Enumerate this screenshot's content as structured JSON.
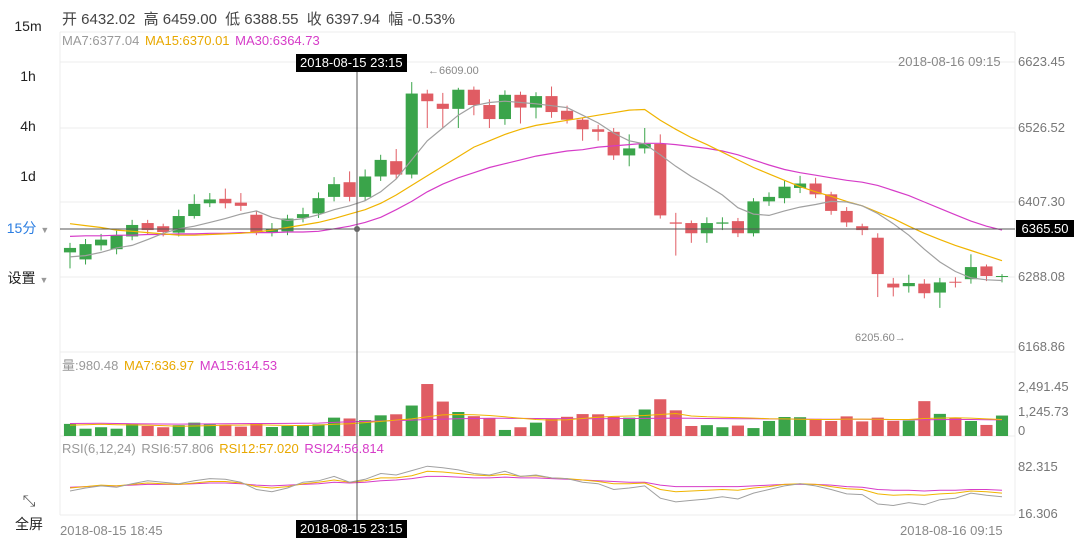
{
  "sidebar": {
    "timeframes": [
      {
        "label": "15m",
        "active": false,
        "caret": false
      },
      {
        "label": "1h",
        "active": false,
        "caret": false
      },
      {
        "label": "4h",
        "active": false,
        "caret": false
      },
      {
        "label": "1d",
        "active": false,
        "caret": false
      },
      {
        "label": "15分",
        "active": true,
        "caret": true
      },
      {
        "label": "设置",
        "active": false,
        "caret": true
      }
    ],
    "fullscreen_label": "全屏"
  },
  "header": {
    "open": "开 6432.02",
    "high": "高 6459.00",
    "low": "低 6388.55",
    "close": "收 6397.94",
    "change": "幅 -0.53%"
  },
  "ma_legend": {
    "ma7": "MA7:6377.04",
    "ma15": "MA15:6370.01",
    "ma30": "MA30:6364.73"
  },
  "vol_legend": {
    "vol": "量:980.48",
    "ma7": "MA7:636.97",
    "ma15": "MA15:614.53"
  },
  "rsi_legend": {
    "title": "RSI(6,12,24)",
    "rsi6": "RSI6:57.806",
    "rsi12": "RSI12:57.020",
    "rsi24": "RSI24:56.814"
  },
  "axis_labels": {
    "price": [
      "6623.45",
      "6526.52",
      "6407.30",
      "6288.08",
      "6168.86"
    ],
    "volume": [
      "2,491.45",
      "1,245.73",
      "0"
    ],
    "rsi": [
      "82.315",
      "16.306"
    ],
    "current_price": "6365.50"
  },
  "annotations": {
    "high_marker": "←6609.00",
    "low_marker": "6205.60→",
    "top_right_time": "2018-08-16 09:15",
    "crosshair_time": "2018-08-15 23:15",
    "bottom_left_date": "2018-08-15 18:45",
    "bottom_time": "2018-08-15 23:15",
    "bottom_right_date": "2018-08-16 09:15"
  },
  "colors": {
    "up": "#3aa44a",
    "down": "#e05c63",
    "ma7": "#a0a0a0",
    "ma15": "#f0b400",
    "ma30": "#d63cc8",
    "accent": "#2a7de1",
    "grid": "#ececec",
    "crosshair": "#555555"
  },
  "chart_data": {
    "type": "candlestick",
    "ylim": [
      6168.86,
      6623.45
    ],
    "candles": [
      [
        6325,
        6332,
        6340,
        6300
      ],
      [
        6314,
        6338,
        6346,
        6306
      ],
      [
        6336,
        6345,
        6354,
        6328
      ],
      [
        6330,
        6352,
        6359,
        6322
      ],
      [
        6350,
        6368,
        6376,
        6344
      ],
      [
        6371,
        6360,
        6376,
        6353
      ],
      [
        6366,
        6357,
        6370,
        6350
      ],
      [
        6356,
        6382,
        6392,
        6350
      ],
      [
        6382,
        6401,
        6416,
        6378
      ],
      [
        6402,
        6408,
        6418,
        6396
      ],
      [
        6409,
        6402,
        6425,
        6394
      ],
      [
        6403,
        6398,
        6418,
        6390
      ],
      [
        6384,
        6357,
        6390,
        6352
      ],
      [
        6356,
        6361,
        6371,
        6350
      ],
      [
        6358,
        6378,
        6384,
        6352
      ],
      [
        6379,
        6385,
        6395,
        6372
      ],
      [
        6386,
        6410,
        6419,
        6379
      ],
      [
        6412,
        6432,
        6443,
        6405
      ],
      [
        6435,
        6412,
        6452,
        6405
      ],
      [
        6412,
        6444,
        6455,
        6406
      ],
      [
        6444,
        6470,
        6478,
        6437
      ],
      [
        6468,
        6447,
        6487,
        6440
      ],
      [
        6447,
        6574,
        6592,
        6441
      ],
      [
        6574,
        6562,
        6580,
        6520
      ],
      [
        6558,
        6550,
        6575,
        6520
      ],
      [
        6550,
        6580,
        6583,
        6520
      ],
      [
        6580,
        6556,
        6585,
        6540
      ],
      [
        6556,
        6534,
        6565,
        6520
      ],
      [
        6534,
        6572,
        6579,
        6525
      ],
      [
        6572,
        6552,
        6577,
        6527
      ],
      [
        6552,
        6570,
        6576,
        6535
      ],
      [
        6570,
        6545,
        6585,
        6536
      ],
      [
        6547,
        6533,
        6555,
        6527
      ],
      [
        6533,
        6518,
        6536,
        6500
      ],
      [
        6518,
        6514,
        6525,
        6500
      ],
      [
        6514,
        6477,
        6520,
        6470
      ],
      [
        6477,
        6488,
        6510,
        6460
      ],
      [
        6488,
        6495,
        6520,
        6480
      ],
      [
        6495,
        6383,
        6510,
        6378
      ],
      [
        6372,
        6370,
        6387,
        6320
      ],
      [
        6371,
        6355,
        6375,
        6340
      ],
      [
        6355,
        6371,
        6380,
        6340
      ],
      [
        6370,
        6372,
        6380,
        6360
      ],
      [
        6374,
        6355,
        6379,
        6349
      ],
      [
        6355,
        6405,
        6410,
        6350
      ],
      [
        6405,
        6412,
        6419,
        6398
      ],
      [
        6410,
        6428,
        6438,
        6402
      ],
      [
        6426,
        6433,
        6445,
        6418
      ],
      [
        6433,
        6416,
        6442,
        6410
      ],
      [
        6416,
        6390,
        6420,
        6384
      ],
      [
        6390,
        6372,
        6396,
        6365
      ],
      [
        6366,
        6360,
        6370,
        6352
      ],
      [
        6348,
        6291,
        6355,
        6255
      ],
      [
        6276,
        6270,
        6285,
        6256
      ],
      [
        6272,
        6277,
        6290,
        6262
      ],
      [
        6276,
        6261,
        6283,
        6253
      ],
      [
        6262,
        6278,
        6285,
        6238
      ],
      [
        6279,
        6278,
        6286,
        6270
      ],
      [
        6283,
        6302,
        6322,
        6276
      ],
      [
        6303,
        6288,
        6306,
        6280
      ],
      [
        6288,
        6288,
        6291,
        6278
      ]
    ],
    "ma7": [
      6318,
      6320,
      6325,
      6332,
      6336,
      6345,
      6355,
      6362,
      6366,
      6372,
      6378,
      6385,
      6390,
      6380,
      6375,
      6378,
      6384,
      6392,
      6398,
      6406,
      6420,
      6440,
      6470,
      6500,
      6520,
      6540,
      6555,
      6560,
      6562,
      6560,
      6558,
      6555,
      6552,
      6540,
      6528,
      6512,
      6500,
      6495,
      6478,
      6460,
      6444,
      6430,
      6415,
      6395,
      6385,
      6383,
      6390,
      6396,
      6400,
      6405,
      6404,
      6398,
      6386,
      6370,
      6352,
      6330,
      6310,
      6295,
      6285,
      6282,
      6281
    ],
    "ma15": [
      6370,
      6367,
      6364,
      6360,
      6358,
      6356,
      6354,
      6352,
      6352,
      6353,
      6354,
      6355,
      6357,
      6360,
      6364,
      6368,
      6372,
      6378,
      6385,
      6392,
      6402,
      6415,
      6430,
      6445,
      6460,
      6475,
      6490,
      6500,
      6510,
      6518,
      6524,
      6528,
      6532,
      6536,
      6540,
      6544,
      6548,
      6549,
      6532,
      6518,
      6505,
      6494,
      6482,
      6470,
      6458,
      6448,
      6438,
      6428,
      6420,
      6413,
      6405,
      6398,
      6388,
      6378,
      6366,
      6355,
      6345,
      6336,
      6328,
      6320,
      6312
    ],
    "ma30": [
      6350,
      6351,
      6351,
      6352,
      6352,
      6353,
      6353,
      6354,
      6354,
      6355,
      6355,
      6356,
      6356,
      6356,
      6357,
      6357,
      6358,
      6362,
      6366,
      6372,
      6380,
      6392,
      6405,
      6420,
      6432,
      6442,
      6450,
      6458,
      6464,
      6470,
      6476,
      6480,
      6484,
      6486,
      6490,
      6492,
      6494,
      6496,
      6496,
      6494,
      6491,
      6488,
      6484,
      6478,
      6470,
      6462,
      6455,
      6450,
      6446,
      6442,
      6438,
      6435,
      6430,
      6422,
      6414,
      6404,
      6394,
      6384,
      6374,
      6366,
      6360
    ],
    "volume_ylim": [
      0,
      2491.45
    ],
    "volume": [
      580,
      350,
      420,
      350,
      580,
      480,
      420,
      520,
      640,
      560,
      530,
      450,
      620,
      430,
      480,
      520,
      560,
      880,
      840,
      760,
      990,
      1040,
      1460,
      2490,
      1650,
      1150,
      950,
      850,
      290,
      420,
      640,
      830,
      920,
      1050,
      1040,
      920,
      880,
      1270,
      1760,
      1230,
      480,
      520,
      420,
      500,
      380,
      720,
      910,
      900,
      820,
      720,
      940,
      700,
      880,
      730,
      740,
      1670,
      1060,
      860,
      720,
      530,
      980
    ],
    "volume_ma7": [
      520,
      540,
      560,
      540,
      530,
      520,
      500,
      470,
      480,
      500,
      520,
      520,
      540,
      520,
      510,
      500,
      520,
      560,
      590,
      640,
      700,
      760,
      820,
      920,
      1010,
      1030,
      1020,
      980,
      920,
      850,
      790,
      760,
      780,
      840,
      900,
      940,
      960,
      980,
      1030,
      1080,
      960,
      920,
      900,
      880,
      860,
      830,
      820,
      800,
      790,
      790,
      810,
      810,
      800,
      790,
      790,
      840,
      860,
      870,
      860,
      820,
      790
    ],
    "volume_ma15": [
      600,
      605,
      610,
      600,
      590,
      580,
      575,
      570,
      575,
      580,
      590,
      595,
      600,
      600,
      605,
      610,
      620,
      650,
      680,
      700,
      720,
      740,
      760,
      790,
      810,
      830,
      840,
      850,
      850,
      845,
      840,
      835,
      830,
      830,
      830,
      835,
      840,
      845,
      850,
      860,
      850,
      840,
      835,
      830,
      825,
      820,
      815,
      810,
      805,
      800,
      800,
      800,
      795,
      790,
      780,
      780,
      785,
      790,
      790,
      780,
      770
    ],
    "rsi_ylim": [
      16.306,
      82.315
    ],
    "rsi6": [
      48,
      52,
      55,
      53,
      58,
      62,
      60,
      58,
      62,
      65,
      64,
      60,
      50,
      47,
      52,
      60,
      62,
      68,
      60,
      64,
      72,
      70,
      76,
      82,
      80,
      77,
      72,
      70,
      75,
      68,
      70,
      66,
      65,
      60,
      58,
      50,
      52,
      55,
      38,
      33,
      35,
      37,
      40,
      37,
      45,
      50,
      55,
      58,
      55,
      50,
      44,
      43,
      30,
      28,
      32,
      29,
      36,
      38,
      45,
      42,
      40
    ],
    "rsi12": [
      52,
      54,
      56,
      55,
      57,
      59,
      58,
      57,
      59,
      61,
      61,
      59,
      54,
      52,
      54,
      58,
      60,
      63,
      60,
      62,
      66,
      66,
      69,
      75,
      74,
      72,
      70,
      69,
      71,
      68,
      69,
      66,
      65,
      63,
      61,
      58,
      58,
      59,
      50,
      47,
      48,
      49,
      50,
      49,
      52,
      54,
      57,
      58,
      57,
      54,
      51,
      50,
      44,
      42,
      43,
      42,
      44,
      45,
      48,
      47,
      45
    ],
    "rsi24": [
      53,
      54,
      55,
      55,
      56,
      57,
      57,
      57,
      58,
      59,
      59,
      58,
      56,
      55,
      56,
      57,
      58,
      60,
      59,
      60,
      62,
      63,
      65,
      68,
      68,
      67,
      66,
      66,
      67,
      66,
      66,
      65,
      64,
      63,
      62,
      61,
      60,
      60,
      56,
      54,
      54,
      54,
      54,
      54,
      55,
      56,
      57,
      57,
      57,
      56,
      54,
      53,
      50,
      49,
      49,
      48,
      49,
      49,
      50,
      50,
      49
    ]
  }
}
